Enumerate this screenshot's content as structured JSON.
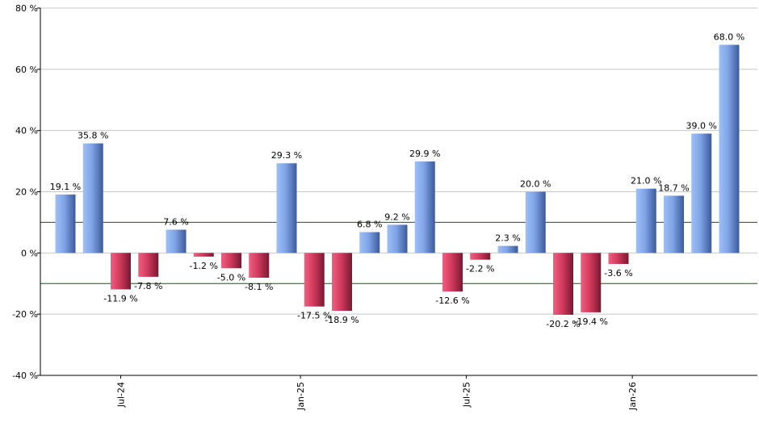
{
  "chart_data": {
    "type": "bar",
    "title": "",
    "xlabel": "",
    "ylabel": "",
    "ylim": [
      -40,
      80
    ],
    "y_ticks": [
      -40,
      -20,
      0,
      20,
      40,
      60,
      80
    ],
    "y_tick_labels": [
      "-40 %",
      "-20 %",
      "0 %",
      "20 %",
      "40 %",
      "60 %",
      "80 %"
    ],
    "grid": true,
    "reference_lines": [
      10,
      -10
    ],
    "reference_line_color": "#006400",
    "positive_color": "#7fa6e8",
    "negative_color": "#d23a5e",
    "values": [
      19.1,
      35.8,
      -11.9,
      -7.8,
      7.6,
      -1.2,
      -5.0,
      -8.1,
      29.3,
      -17.5,
      -18.9,
      6.8,
      9.2,
      29.9,
      -12.6,
      -2.2,
      2.3,
      20.0,
      -20.2,
      -19.4,
      -3.6,
      21.0,
      18.7,
      39.0,
      68.0
    ],
    "data_labels": [
      "19.1 %",
      "35.8 %",
      "-11.9 %",
      "-7.8 %",
      "7.6 %",
      "-1.2 %",
      "-5.0 %",
      "-8.1 %",
      "29.3 %",
      "-17.5 %",
      "-18.9 %",
      "6.8 %",
      "9.2 %",
      "29.9 %",
      "-12.6 %",
      "-2.2 %",
      "2.3 %",
      "20.0 %",
      "-20.2 %",
      "-19.4 %",
      "-3.6 %",
      "21.0 %",
      "18.7 %",
      "39.0 %",
      "68.0 %"
    ],
    "x_tick_labels": [
      {
        "label": "Jul-24",
        "bar_index": 2
      },
      {
        "label": "Jan-25",
        "bar_index": 8.5
      },
      {
        "label": "Jul-25",
        "bar_index": 14.5
      },
      {
        "label": "Jan-26",
        "bar_index": 20.5
      }
    ]
  }
}
